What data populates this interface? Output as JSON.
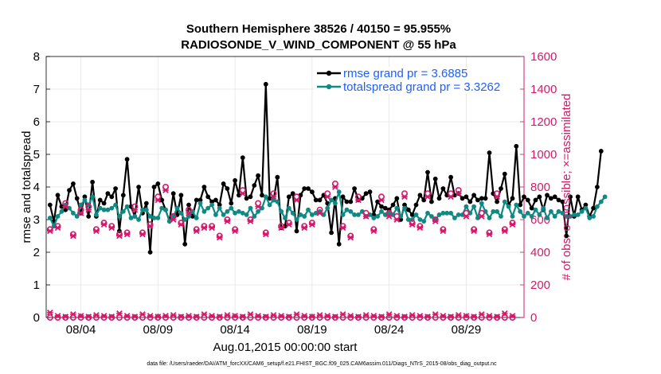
{
  "chart_data": {
    "type": "line",
    "title": "Southern Hemisphere 38526 / 40150 = 95.955%",
    "subtitle": "RADIOSONDE_V_WIND_COMPONENT @ 55 hPa",
    "xlabel": "Aug.01,2015 00:00:00 start",
    "ylabel_left": "rmse and totalspread",
    "ylabel_right": "# of obs: o=possible; ×=assimilated",
    "xlim": [
      0.75,
      31.75
    ],
    "ylim_left": [
      0,
      8
    ],
    "ylim_right": [
      0,
      1600
    ],
    "x_ticks": [
      3,
      8,
      13,
      18,
      23,
      28
    ],
    "x_tick_labels": [
      "08/04",
      "08/09",
      "08/14",
      "08/19",
      "08/24",
      "08/29"
    ],
    "y_ticks_left": [
      0,
      1,
      2,
      3,
      4,
      5,
      6,
      7,
      8
    ],
    "y_tick_labels_left": [
      "0",
      "1",
      "2",
      "3",
      "4",
      "5",
      "6",
      "7",
      "8"
    ],
    "y_ticks_right": [
      0,
      200,
      400,
      600,
      800,
      1000,
      1200,
      1400,
      1600
    ],
    "y_tick_labels_right": [
      "0",
      "200",
      "400",
      "600",
      "800",
      "1000",
      "1200",
      "1400",
      "1600"
    ],
    "grid": true,
    "legend_position": "top-right",
    "x_step": 0.25,
    "series": [
      {
        "name": "rmse grand pr = 3.6885",
        "axis": "left",
        "color": "#000000",
        "marker": "filled-circle",
        "values": [
          3.45,
          2.95,
          3.75,
          3.4,
          3.3,
          3.9,
          4.1,
          3.65,
          3.2,
          3.7,
          3.1,
          4.15,
          3.1,
          3.6,
          3.5,
          3.8,
          3.7,
          3.95,
          2.65,
          3.75,
          4.85,
          3.4,
          3.1,
          4.0,
          3.2,
          3.5,
          2.0,
          4.0,
          4.1,
          3.6,
          3.3,
          2.95,
          3.8,
          3.15,
          3.75,
          2.25,
          3.45,
          3.1,
          3.6,
          3.6,
          4.0,
          3.7,
          3.55,
          3.6,
          3.45,
          4.1,
          3.95,
          3.5,
          4.2,
          3.75,
          4.9,
          3.65,
          3.7,
          4.05,
          4.35,
          3.75,
          7.15,
          3.65,
          3.6,
          4.3,
          2.75,
          2.8,
          3.7,
          3.8,
          2.65,
          3.75,
          3.95,
          3.95,
          3.85,
          3.6,
          3.6,
          3.75,
          3.5,
          2.6,
          3.65,
          2.25,
          3.7,
          3.55,
          3.55,
          3.95,
          3.6,
          3.65,
          3.8,
          3.85,
          3.15,
          3.55,
          3.4,
          3.35,
          3.3,
          3.45,
          3.65,
          3.0,
          3.45,
          3.3,
          3.15,
          3.45,
          3.75,
          3.6,
          4.45,
          3.55,
          4.25,
          3.65,
          3.95,
          3.75,
          4.3,
          3.75,
          3.8,
          3.65,
          3.7,
          3.55,
          3.75,
          3.6,
          3.65,
          3.65,
          5.05,
          3.8,
          3.55,
          3.95,
          4.4,
          3.45,
          3.65,
          5.25,
          3.45,
          3.7,
          3.6,
          3.35,
          3.6,
          3.7,
          3.3,
          3.75,
          3.65,
          3.7,
          3.6,
          3.55,
          2.5,
          3.7,
          3.1,
          3.7,
          3.3,
          3.45,
          3.1,
          3.35,
          4.0,
          5.1
        ]
      },
      {
        "name": "totalspread grand pr = 3.3262",
        "axis": "left",
        "color": "#0e8a84",
        "marker": "filled-circle",
        "values": [
          3.05,
          2.8,
          3.1,
          3.25,
          3.45,
          3.35,
          3.2,
          3.1,
          3.45,
          3.6,
          3.45,
          3.7,
          3.15,
          3.35,
          3.3,
          3.3,
          3.35,
          3.45,
          3.1,
          3.25,
          3.4,
          3.05,
          3.1,
          3.0,
          3.3,
          3.3,
          3.1,
          3.05,
          3.05,
          3.35,
          3.3,
          2.95,
          3.1,
          3.35,
          3.2,
          3.0,
          3.1,
          3.25,
          3.05,
          3.5,
          3.25,
          3.35,
          3.45,
          3.15,
          3.35,
          3.15,
          3.25,
          3.35,
          3.2,
          3.25,
          3.2,
          3.15,
          3.35,
          3.1,
          3.25,
          3.35,
          3.7,
          3.45,
          3.6,
          3.55,
          3.25,
          3.05,
          3.35,
          3.2,
          3.0,
          3.15,
          3.1,
          3.3,
          3.15,
          3.2,
          3.25,
          3.15,
          3.35,
          3.6,
          3.5,
          3.85,
          3.15,
          3.3,
          3.25,
          3.15,
          3.15,
          3.25,
          3.1,
          3.15,
          3.05,
          3.1,
          3.25,
          3.15,
          3.2,
          3.15,
          3.35,
          3.1,
          3.35,
          3.0,
          3.0,
          3.15,
          3.0,
          2.95,
          3.2,
          3.1,
          3.0,
          3.15,
          3.2,
          3.2,
          3.2,
          3.05,
          3.15,
          3.15,
          3.4,
          3.2,
          3.4,
          3.05,
          3.5,
          3.25,
          3.05,
          3.25,
          3.25,
          3.1,
          3.55,
          3.4,
          3.1,
          3.45,
          3.25,
          3.1,
          3.2,
          3.1,
          3.3,
          3.15,
          3.35,
          3.05,
          3.25,
          3.1,
          3.25,
          3.2,
          3.1,
          3.1,
          3.15,
          3.15,
          3.25,
          3.35,
          3.05,
          3.1,
          3.4,
          3.55,
          3.7
        ]
      }
    ],
    "obs_possible": {
      "axis": "right",
      "marker": "circle",
      "color": "#d6196b",
      "values_hi": [
        540,
        560,
        700,
        510,
        660,
        680,
        540,
        580,
        560,
        510,
        520,
        680,
        520,
        570,
        740,
        800,
        620,
        580,
        660,
        540,
        560,
        560,
        500,
        600,
        540,
        780,
        600,
        700,
        520,
        760,
        560,
        580,
        740,
        560,
        580,
        660,
        760,
        820,
        560,
        500,
        740,
        640,
        540,
        740,
        640,
        620,
        760,
        580,
        560,
        760,
        600,
        540,
        760,
        780,
        640,
        540,
        640,
        520,
        760,
        540,
        580
      ],
      "values_lo": [
        0,
        0,
        0,
        0,
        0,
        0,
        0,
        0,
        0,
        0,
        0,
        0,
        0,
        0,
        0,
        0,
        0,
        0,
        0,
        0,
        0,
        0,
        0,
        0,
        0,
        0,
        0,
        0,
        0,
        0,
        0,
        0,
        0,
        0,
        0,
        0,
        0,
        0,
        0,
        0,
        0,
        0,
        0,
        0,
        0,
        0,
        0,
        0,
        0,
        0,
        0,
        0,
        0,
        0,
        0,
        0,
        0,
        0,
        0,
        0,
        0
      ]
    },
    "obs_assimilated": {
      "axis": "right",
      "marker": "x",
      "color": "#d6196b",
      "values_hi": [
        530,
        550,
        680,
        500,
        640,
        660,
        530,
        570,
        550,
        500,
        510,
        660,
        510,
        560,
        720,
        780,
        600,
        570,
        640,
        530,
        550,
        550,
        490,
        590,
        530,
        760,
        590,
        680,
        510,
        740,
        550,
        570,
        720,
        550,
        570,
        640,
        740,
        800,
        550,
        490,
        720,
        620,
        530,
        720,
        620,
        600,
        740,
        570,
        550,
        740,
        590,
        530,
        740,
        760,
        620,
        530,
        620,
        510,
        740,
        530,
        570
      ],
      "values_lo": [
        30,
        10,
        5,
        20,
        10,
        5,
        15,
        10,
        5,
        25,
        10,
        5,
        20,
        10,
        5,
        10,
        15,
        5,
        10,
        5,
        20,
        10,
        5,
        15,
        10,
        5,
        20,
        10,
        5,
        15,
        10,
        5,
        20,
        10,
        5,
        15,
        10,
        5,
        20,
        10,
        5,
        15,
        10,
        5,
        20,
        10,
        5,
        15,
        10,
        5,
        20,
        10,
        5,
        15,
        10,
        5,
        20,
        10,
        5,
        25,
        10
      ]
    },
    "obs_x_start": 1.0,
    "obs_x_step": 0.5
  },
  "footnote": "data file: /Users/raeder/DAI/ATM_forcXX/CAM6_setup/f.e21.FHIST_BGC.f09_025.CAM6assim.011/Diags_NTrS_2015-08/obs_diag_output.nc",
  "colors": {
    "left_axis": "#000000",
    "right_axis": "#d6196b",
    "legend_text": "#1f5fff",
    "grid": "#e4e4e4"
  }
}
